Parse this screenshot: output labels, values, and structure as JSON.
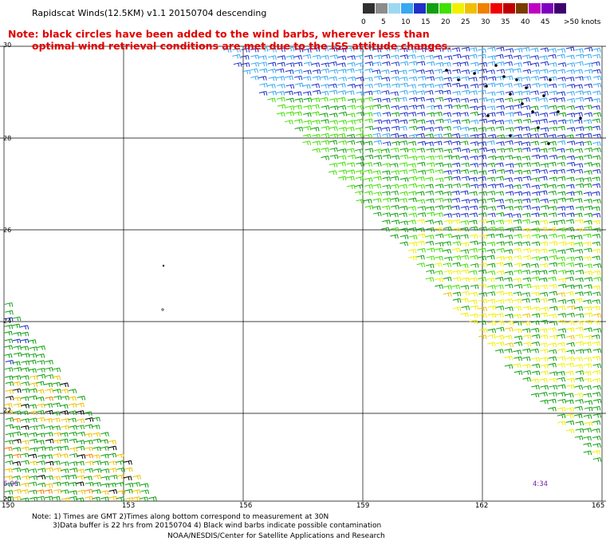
{
  "header": {
    "title": "Rapidscat Winds(12.5KM) v1.1 20150704 descending",
    "note_line1": "Note: black circles have been added to the wind barbs, wherever less than",
    "note_line2": "optimal wind retrieval conditions are met due to the ISS attitude changes."
  },
  "legend": {
    "unit": ">50 knots",
    "labels": [
      "0",
      "5",
      "10",
      "15",
      "20",
      "25",
      "30",
      "35",
      "40",
      "45"
    ],
    "colors": [
      "#303030",
      "#8c8c8c",
      "#9ed8f0",
      "#38a8f0",
      "#2030c8",
      "#10a010",
      "#40e000",
      "#f0f000",
      "#f0c000",
      "#f08000",
      "#f00000",
      "#c00000",
      "#783c00",
      "#c000c0",
      "#8000c0",
      "#400070"
    ]
  },
  "map": {
    "lat_labels": [
      "30",
      "28",
      "26",
      "24",
      "22",
      "20"
    ],
    "lon_labels": [
      "150",
      "153",
      "156",
      "159",
      "162",
      "165"
    ],
    "times": [
      "6:06",
      "4:34"
    ]
  },
  "footer": {
    "line1": "Note: 1) Times are GMT 2)Times along bottom correspond to measurement at 30N",
    "line2": "3)Data buffer is 22 hrs from 20150704 4) Black wind barbs indicate possible contamination",
    "line3": "NOAA/NESDIS/Center for Satellite Applications and Research"
  }
}
